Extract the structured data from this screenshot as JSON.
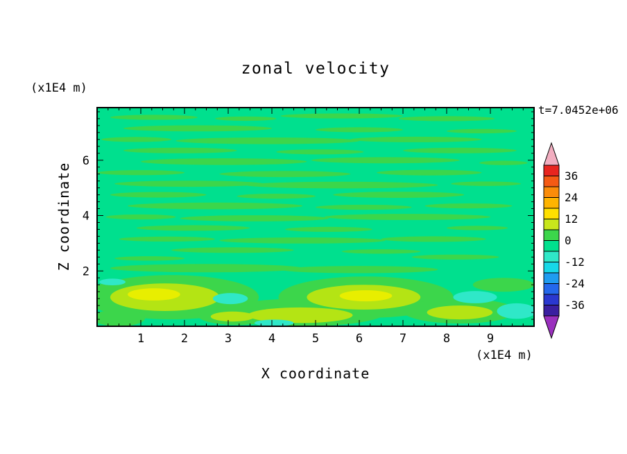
{
  "chart_data": {
    "type": "heatmap",
    "subtype": "filled-contour",
    "title": "zonal velocity",
    "annotation": "t=7.0452e+06",
    "xlabel": "X coordinate",
    "ylabel": "Z coordinate",
    "x_unit": "(x1E4 m)",
    "y_unit": "(x1E4 m)",
    "x_range": [
      0,
      10
    ],
    "z_range": [
      0,
      7.9
    ],
    "x_ticks": [
      1,
      2,
      3,
      4,
      5,
      6,
      7,
      8,
      9
    ],
    "z_ticks": [
      2,
      4,
      6
    ],
    "minor_tick_step": 0.25,
    "levels_min": -42,
    "levels_max": 42,
    "level_step": 6,
    "features_summary": "Mostly near-zero zonal velocity (green bands between -6 and +6) arranged in thin horizontal streaks; positive anomalies (+6 to +18, yellow-green/yellow) near the bottom around x=0.5-3 and x=5-7.5 at z=0.5-1.5; weak negative anomalies (-6 to -12, cyan) near x=3, x=8.5 and x=9.5 at low z.",
    "colorbar": {
      "labels": [
        "36",
        "24",
        "12",
        "0",
        "-12",
        "-24",
        "-36"
      ],
      "segment_colors": [
        "#E8251F",
        "#F55A14",
        "#FB8C0A",
        "#FFB400",
        "#FFE000",
        "#C8E61C",
        "#3CD64B",
        "#00E08E",
        "#2FE8C8",
        "#17D8E8",
        "#1F9CF0",
        "#2468EC",
        "#2A38D0",
        "#3A1FA0"
      ],
      "top_arrow_color": "#F2AEC0",
      "bottom_arrow_color": "#9A30BE"
    },
    "field": {
      "background_color": "#00E08E",
      "background_band": "-6 to 0",
      "bands": [
        {
          "name": "band-0-6",
          "color": "#3CD64B",
          "blobs": [
            [
              1.3,
              7.55,
              1.0,
              0.09
            ],
            [
              3.4,
              7.5,
              0.7,
              0.08
            ],
            [
              5.6,
              7.6,
              1.4,
              0.09
            ],
            [
              8.0,
              7.5,
              1.1,
              0.09
            ],
            [
              2.3,
              7.15,
              1.7,
              0.11
            ],
            [
              6.0,
              7.1,
              1.0,
              0.09
            ],
            [
              8.8,
              7.05,
              0.8,
              0.08
            ],
            [
              0.9,
              6.75,
              0.8,
              0.09
            ],
            [
              3.9,
              6.7,
              2.1,
              0.12
            ],
            [
              7.3,
              6.75,
              1.5,
              0.1
            ],
            [
              1.9,
              6.35,
              1.3,
              0.1
            ],
            [
              5.1,
              6.3,
              1.0,
              0.09
            ],
            [
              8.3,
              6.35,
              1.3,
              0.1
            ],
            [
              2.9,
              5.95,
              1.9,
              0.12
            ],
            [
              6.6,
              6.0,
              1.7,
              0.11
            ],
            [
              9.3,
              5.9,
              0.55,
              0.08
            ],
            [
              1.0,
              5.55,
              1.0,
              0.09
            ],
            [
              4.3,
              5.5,
              1.5,
              0.11
            ],
            [
              7.6,
              5.55,
              1.2,
              0.1
            ],
            [
              2.1,
              5.15,
              1.7,
              0.11
            ],
            [
              5.6,
              5.1,
              2.2,
              0.12
            ],
            [
              8.9,
              5.15,
              0.8,
              0.08
            ],
            [
              1.4,
              4.75,
              1.1,
              0.1
            ],
            [
              4.1,
              4.7,
              0.9,
              0.09
            ],
            [
              6.9,
              4.75,
              1.5,
              0.11
            ],
            [
              2.7,
              4.35,
              2.0,
              0.12
            ],
            [
              6.1,
              4.3,
              1.1,
              0.09
            ],
            [
              8.5,
              4.35,
              1.0,
              0.09
            ],
            [
              1.0,
              3.95,
              0.8,
              0.09
            ],
            [
              3.6,
              3.9,
              1.7,
              0.11
            ],
            [
              7.1,
              3.95,
              1.9,
              0.11
            ],
            [
              2.2,
              3.55,
              1.3,
              0.1
            ],
            [
              5.3,
              3.5,
              1.0,
              0.09
            ],
            [
              8.7,
              3.55,
              0.7,
              0.08
            ],
            [
              1.6,
              3.15,
              1.1,
              0.09
            ],
            [
              4.7,
              3.1,
              1.9,
              0.11
            ],
            [
              7.7,
              3.15,
              1.2,
              0.1
            ],
            [
              3.1,
              2.75,
              1.4,
              0.1
            ],
            [
              6.5,
              2.7,
              0.9,
              0.08
            ],
            [
              1.2,
              2.45,
              0.8,
              0.08
            ],
            [
              8.2,
              2.5,
              1.0,
              0.09
            ],
            [
              2.5,
              2.1,
              2.2,
              0.15
            ],
            [
              6.0,
              2.05,
              1.8,
              0.13
            ],
            [
              1.7,
              1.05,
              2.0,
              0.8
            ],
            [
              6.15,
              1.05,
              2.0,
              0.75
            ],
            [
              4.7,
              0.5,
              1.9,
              0.5
            ],
            [
              8.3,
              0.55,
              1.3,
              0.45
            ],
            [
              3.2,
              0.4,
              0.9,
              0.35
            ],
            [
              9.3,
              1.5,
              0.7,
              0.25
            ],
            [
              0.5,
              0.3,
              0.6,
              0.3
            ]
          ]
        },
        {
          "name": "band-6-12",
          "color": "#B4E414",
          "blobs": [
            [
              1.55,
              1.05,
              1.25,
              0.5
            ],
            [
              6.1,
              1.05,
              1.3,
              0.45
            ],
            [
              4.65,
              0.4,
              1.2,
              0.28
            ],
            [
              8.3,
              0.5,
              0.75,
              0.25
            ],
            [
              3.1,
              0.35,
              0.5,
              0.18
            ]
          ]
        },
        {
          "name": "band-12-18",
          "color": "#E8EE00",
          "blobs": [
            [
              1.3,
              1.15,
              0.6,
              0.22
            ],
            [
              6.15,
              1.1,
              0.6,
              0.2
            ]
          ]
        },
        {
          "name": "band-neg12-neg6",
          "color": "#2FE8C8",
          "blobs": [
            [
              3.05,
              1.0,
              0.4,
              0.2
            ],
            [
              8.65,
              1.05,
              0.5,
              0.22
            ],
            [
              9.6,
              0.55,
              0.45,
              0.28
            ],
            [
              4.05,
              0.12,
              0.45,
              0.12
            ],
            [
              0.35,
              1.6,
              0.3,
              0.12
            ]
          ]
        }
      ]
    }
  }
}
